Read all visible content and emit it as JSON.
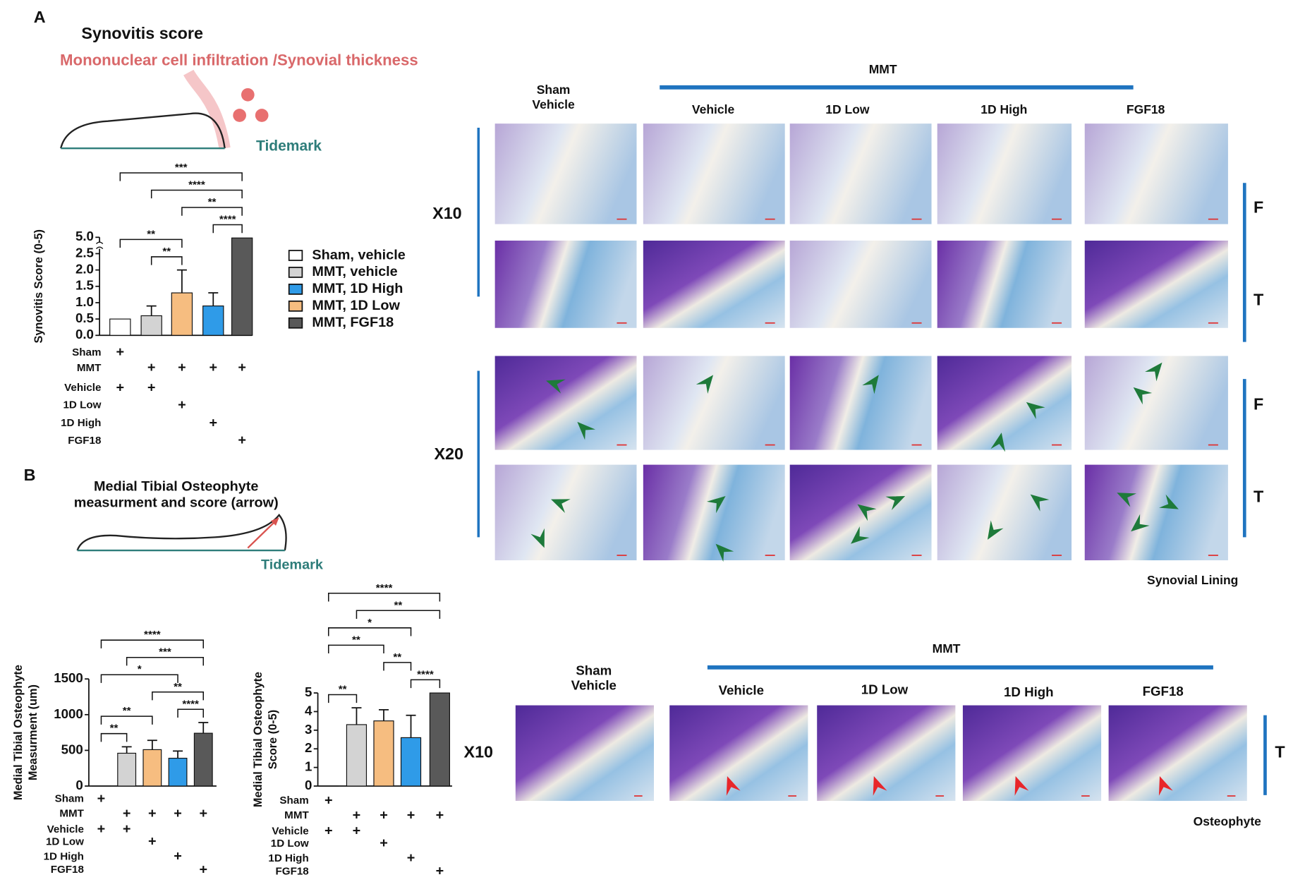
{
  "panel_a": {
    "label": "A",
    "title": "Synovitis score",
    "subtitle": "Mononuclear cell infiltration /Synovial thickness",
    "tidemark": "Tidemark"
  },
  "panel_b": {
    "label": "B",
    "title": [
      "Medial Tibial Osteophyte",
      "measurment and score (arrow)"
    ],
    "tidemark": "Tidemark"
  },
  "histology_a": {
    "group": "MMT",
    "control": [
      "Sham",
      "Vehicle"
    ],
    "columns": [
      "Vehicle",
      "1D Low",
      "1D High",
      "FGF18"
    ],
    "magnifications": [
      "X10",
      "X20"
    ],
    "rows": [
      "F",
      "T",
      "F",
      "T"
    ],
    "caption": "Synovial Lining"
  },
  "histology_b": {
    "group": "MMT",
    "control": [
      "Sham",
      "Vehicle"
    ],
    "columns": [
      "Vehicle",
      "1D Low",
      "1D High",
      "FGF18"
    ],
    "magnification": "X10",
    "row": "T",
    "caption": "Osteophyte"
  },
  "chart_data": [
    {
      "type": "bar",
      "ylabel": [
        "Synovitis Score (0-5)"
      ],
      "categories": [
        null,
        null,
        null,
        null,
        null
      ],
      "values": [
        0.5,
        0.6,
        1.3,
        0.9,
        4.9
      ],
      "errors": [
        0,
        0.3,
        0.7,
        0.4,
        0
      ],
      "colors": [
        "#ffffff",
        "#d3d3d3",
        "#f6bd80",
        "#2f9be8",
        "#595959"
      ],
      "ylim": [
        0,
        5
      ],
      "yticks": [
        {
          "value": 0,
          "label": "0.0"
        },
        {
          "value": 0.5,
          "label": "0.5"
        },
        {
          "value": 1,
          "label": "1.0"
        },
        {
          "value": 1.5,
          "label": "1.5"
        },
        {
          "value": 2,
          "label": "2.0"
        },
        {
          "value": 2.5,
          "label": "2.5"
        },
        {
          "value": 5,
          "label": "5.0"
        }
      ],
      "broken_axis": true,
      "comparisons": [
        {
          "from": 1,
          "to": 2,
          "label": "**"
        },
        {
          "from": 3,
          "to": 4,
          "label": "****"
        },
        {
          "from": 0,
          "to": 2,
          "label": "**"
        },
        {
          "from": 2,
          "to": 4,
          "label": "**"
        },
        {
          "from": 1,
          "to": 4,
          "label": "****"
        },
        {
          "from": 0,
          "to": 4,
          "label": "***"
        }
      ],
      "legend": [
        {
          "name": "Sham, vehicle",
          "color": "#ffffff"
        },
        {
          "name": "MMT, vehicle",
          "color": "#d3d3d3"
        },
        {
          "name": "MMT, 1D High",
          "color": "#2f9be8"
        },
        {
          "name": "MMT, 1D Low",
          "color": "#f6bd80"
        },
        {
          "name": "MMT, FGF18",
          "color": "#595959"
        }
      ],
      "condition_rows": [
        {
          "label": "Sham",
          "cells": [
            "+",
            null,
            null,
            null,
            null
          ]
        },
        {
          "label": "MMT",
          "cells": [
            null,
            "+",
            "+",
            "+",
            "+"
          ]
        },
        {
          "label": "Vehicle",
          "cells": [
            "+",
            "+",
            null,
            null,
            null
          ]
        },
        {
          "label": "1D Low",
          "cells": [
            null,
            null,
            "+",
            null,
            null
          ]
        },
        {
          "label": "1D High",
          "cells": [
            null,
            null,
            null,
            "+",
            null
          ]
        },
        {
          "label": "FGF18",
          "cells": [
            null,
            null,
            null,
            null,
            "+"
          ]
        }
      ]
    },
    {
      "type": "bar",
      "ylabel": [
        "Medial Tibial Osteophyte",
        "Measurment (um)"
      ],
      "categories": [
        null,
        null,
        null,
        null,
        null
      ],
      "values": [
        0,
        460,
        510,
        390,
        740
      ],
      "errors": [
        0,
        90,
        130,
        100,
        150
      ],
      "colors": [
        "#ffffff",
        "#d3d3d3",
        "#f6bd80",
        "#2f9be8",
        "#595959"
      ],
      "ylim": [
        0,
        1500
      ],
      "yticks": [
        0,
        500,
        1000,
        1500
      ],
      "comparisons": [
        {
          "from": 0,
          "to": 1,
          "label": "**"
        },
        {
          "from": 3,
          "to": 4,
          "label": "****"
        },
        {
          "from": 0,
          "to": 2,
          "label": "**"
        },
        {
          "from": 2,
          "to": 4,
          "label": "**"
        },
        {
          "from": 0,
          "to": 3,
          "label": "*"
        },
        {
          "from": 1,
          "to": 4,
          "label": "***"
        },
        {
          "from": 0,
          "to": 4,
          "label": "****"
        }
      ],
      "condition_rows": [
        {
          "label": "Sham",
          "cells": [
            "+",
            null,
            null,
            null,
            null
          ]
        },
        {
          "label": "MMT",
          "cells": [
            null,
            "+",
            "+",
            "+",
            "+"
          ]
        },
        {
          "label": "Vehicle",
          "cells": [
            "+",
            "+",
            null,
            null,
            null
          ]
        },
        {
          "label": "1D Low",
          "cells": [
            null,
            null,
            "+",
            null,
            null
          ]
        },
        {
          "label": "1D High",
          "cells": [
            null,
            null,
            null,
            "+",
            null
          ]
        },
        {
          "label": "FGF18",
          "cells": [
            null,
            null,
            null,
            null,
            "+"
          ]
        }
      ]
    },
    {
      "type": "bar",
      "ylabel": [
        "Medial Tibial Osteophyte",
        "Score (0-5)"
      ],
      "categories": [
        null,
        null,
        null,
        null,
        null
      ],
      "values": [
        0,
        3.3,
        3.5,
        2.6,
        5
      ],
      "errors": [
        0,
        0.9,
        0.6,
        1.2,
        0
      ],
      "colors": [
        "#ffffff",
        "#d3d3d3",
        "#f6bd80",
        "#2f9be8",
        "#595959"
      ],
      "ylim": [
        0,
        5
      ],
      "yticks": [
        0,
        1,
        2,
        3,
        4,
        5
      ],
      "comparisons": [
        {
          "from": 0,
          "to": 1,
          "label": "**"
        },
        {
          "from": 3,
          "to": 4,
          "label": "****"
        },
        {
          "from": 0,
          "to": 2,
          "label": "**"
        },
        {
          "from": 2,
          "to": 3,
          "label": "**"
        },
        {
          "from": 0,
          "to": 3,
          "label": "*"
        },
        {
          "from": 1,
          "to": 4,
          "label": "**"
        },
        {
          "from": 0,
          "to": 4,
          "label": "****"
        }
      ],
      "condition_rows": [
        {
          "label": "Sham",
          "cells": [
            "+",
            null,
            null,
            null,
            null
          ]
        },
        {
          "label": "MMT",
          "cells": [
            null,
            "+",
            "+",
            "+",
            "+"
          ]
        },
        {
          "label": "Vehicle",
          "cells": [
            "+",
            "+",
            null,
            null,
            null
          ]
        },
        {
          "label": "1D Low",
          "cells": [
            null,
            null,
            "+",
            null,
            null
          ]
        },
        {
          "label": "1D High",
          "cells": [
            null,
            null,
            null,
            "+",
            null
          ]
        },
        {
          "label": "FGF18",
          "cells": [
            null,
            null,
            null,
            null,
            "+"
          ]
        }
      ]
    }
  ]
}
